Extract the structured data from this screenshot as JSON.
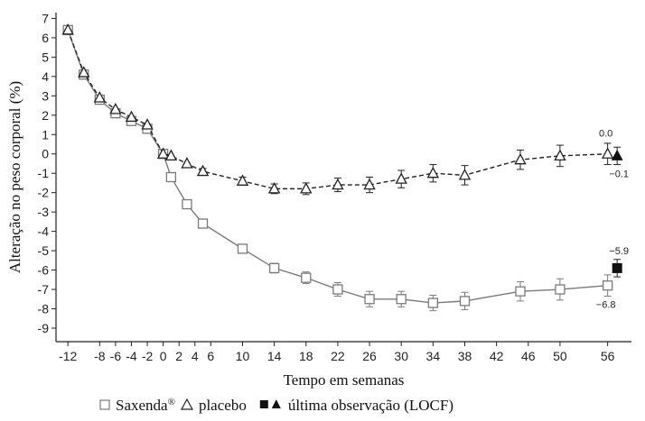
{
  "chart_data": {
    "type": "line",
    "xlabel": "Tempo em semanas",
    "ylabel": "Alteração no peso corporal (%)",
    "xlim": [
      -13.5,
      59
    ],
    "ylim": [
      -9.7,
      7.3
    ],
    "x_ticks": [
      -12,
      -8,
      -6,
      -4,
      -2,
      0,
      2,
      4,
      6,
      10,
      14,
      18,
      22,
      26,
      30,
      34,
      38,
      42,
      46,
      50,
      56
    ],
    "x_tick_labels": [
      "-12",
      "-8",
      "-6",
      "-4",
      "-2",
      "0",
      "2",
      "4",
      "6",
      "10",
      "14",
      "18",
      "22",
      "26",
      "30",
      "34",
      "38",
      "42",
      "46",
      "50",
      "56"
    ],
    "y_ticks": [
      7,
      6,
      5,
      4,
      3,
      2,
      1,
      0,
      -1,
      -2,
      -3,
      -4,
      -5,
      -6,
      -7,
      -8,
      -9
    ],
    "y_tick_labels": [
      "7",
      "6",
      "5",
      "4",
      "3",
      "2",
      "1",
      "0",
      "-1",
      "-2",
      "-3",
      "-4",
      "-5",
      "-6",
      "-7",
      "-8",
      "-9"
    ],
    "grid": false,
    "series": [
      {
        "name": "Saxenda®",
        "marker": "square-open",
        "line": "solid",
        "color": "#7a7a7a",
        "x": [
          -12,
          -10,
          -8,
          -6,
          -4,
          -2,
          0,
          1,
          3,
          5,
          10,
          14,
          18,
          22,
          26,
          30,
          34,
          38,
          45,
          50,
          56
        ],
        "y": [
          6.4,
          4.1,
          2.8,
          2.1,
          1.7,
          1.3,
          0.0,
          -1.2,
          -2.6,
          -3.6,
          -4.9,
          -5.9,
          -6.4,
          -7.0,
          -7.5,
          -7.5,
          -7.7,
          -7.6,
          -7.1,
          -7.0,
          -6.8
        ],
        "err": [
          0,
          0,
          0,
          0,
          0,
          0,
          0,
          0,
          0,
          0.2,
          0.2,
          0.25,
          0.3,
          0.35,
          0.4,
          0.4,
          0.4,
          0.45,
          0.5,
          0.55,
          0.55
        ]
      },
      {
        "name": "placebo",
        "marker": "triangle-open",
        "line": "dashed",
        "color": "#222222",
        "x": [
          -12,
          -10,
          -8,
          -6,
          -4,
          -2,
          0,
          1,
          3,
          5,
          10,
          14,
          18,
          22,
          26,
          30,
          34,
          38,
          45,
          50,
          56
        ],
        "y": [
          6.4,
          4.2,
          2.9,
          2.3,
          1.9,
          1.5,
          0.0,
          -0.1,
          -0.5,
          -0.9,
          -1.4,
          -1.8,
          -1.8,
          -1.6,
          -1.6,
          -1.3,
          -1.0,
          -1.1,
          -0.3,
          -0.1,
          0.0
        ],
        "err": [
          0,
          0,
          0,
          0,
          0,
          0,
          0,
          0,
          0,
          0.15,
          0.2,
          0.25,
          0.3,
          0.35,
          0.4,
          0.45,
          0.45,
          0.5,
          0.5,
          0.55,
          0.55
        ]
      },
      {
        "name": "última observação (LOCF)",
        "points": [
          {
            "of": "Saxenda®",
            "marker": "square-filled",
            "x": 57.2,
            "y": -5.9,
            "err": 0.45,
            "label": "−5.9"
          },
          {
            "of": "placebo",
            "marker": "triangle-filled",
            "x": 57.2,
            "y": -0.1,
            "err": 0.45,
            "label": "−0.1"
          }
        ]
      }
    ],
    "annotations": [
      {
        "text": "0.0",
        "x": 56,
        "y": 0.0
      },
      {
        "text": "−6.8",
        "x": 56,
        "y": -6.8
      }
    ],
    "legend": {
      "position": "bottom",
      "items": [
        {
          "marker": "square-open",
          "text": "Saxenda",
          "sup": "®"
        },
        {
          "marker": "triangle-open",
          "text": "placebo"
        },
        {
          "marker": "filled-pair",
          "text": "última observação (LOCF)"
        }
      ]
    }
  }
}
